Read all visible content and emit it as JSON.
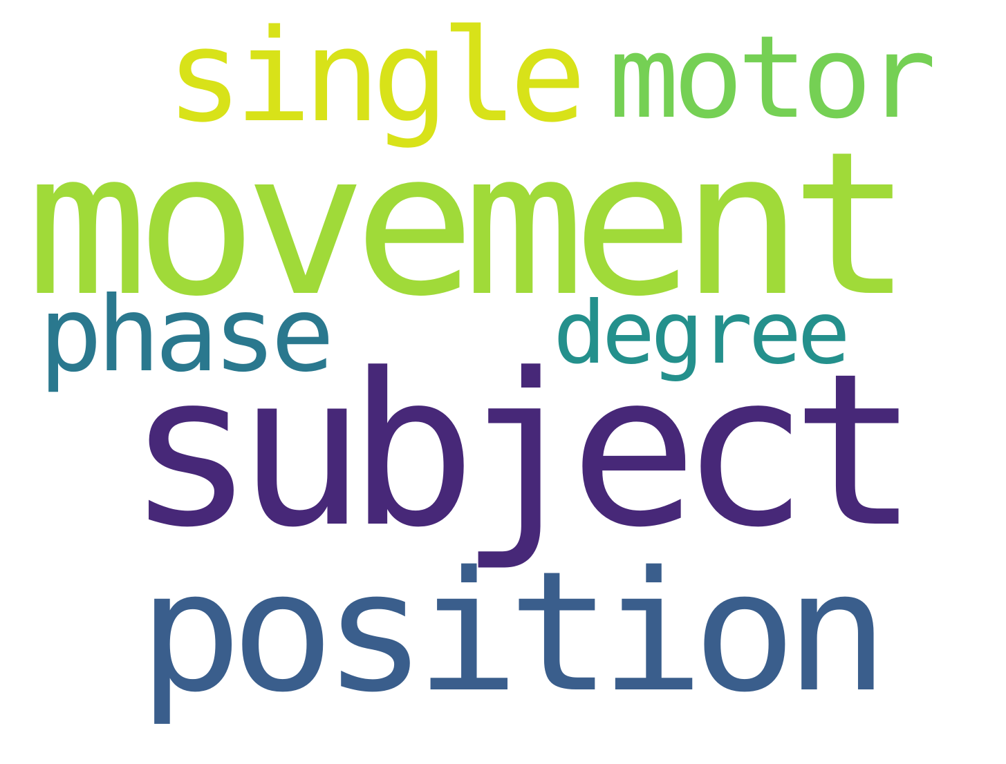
{
  "words": [
    {
      "text": "movement",
      "color": "#a0da39"
    },
    {
      "text": "subject",
      "color": "#472878"
    },
    {
      "text": "position",
      "color": "#3a5e8c"
    },
    {
      "text": "single",
      "color": "#d8e219"
    },
    {
      "text": "motor",
      "color": "#75d054"
    },
    {
      "text": "phase",
      "color": "#2a788e"
    },
    {
      "text": "degree",
      "color": "#24908c"
    }
  ]
}
